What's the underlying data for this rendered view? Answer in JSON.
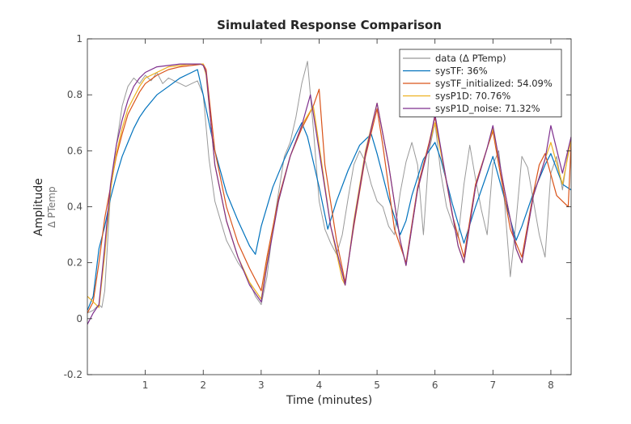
{
  "chart_data": {
    "type": "line",
    "title": "Simulated Response Comparison",
    "xlabel": "Time (minutes)",
    "ylabel": "Amplitude",
    "ylabel_sub": "Δ PTemp",
    "xlim": [
      0,
      8.35
    ],
    "ylim": [
      -0.2,
      1.0
    ],
    "xticks": [
      1,
      2,
      3,
      4,
      5,
      6,
      7,
      8
    ],
    "yticks": [
      -0.2,
      0,
      0.2,
      0.4,
      0.6,
      0.8,
      1
    ],
    "ytick_labels": [
      "-0.2",
      "0",
      "0.2",
      "0.4",
      "0.6",
      "0.8",
      "1"
    ],
    "grid": false,
    "legend_position": "top-right",
    "colors": {
      "data": "#999999",
      "sysTF": "#0072BD",
      "sysTF_initialized": "#D95319",
      "sysP1D": "#EDB120",
      "sysP1D_noise": "#7E2F8E"
    },
    "series": [
      {
        "name": "data (Δ PTemp)",
        "key": "data",
        "x": [
          0.0,
          0.1,
          0.2,
          0.25,
          0.3,
          0.4,
          0.5,
          0.6,
          0.7,
          0.8,
          0.9,
          1.0,
          1.1,
          1.2,
          1.3,
          1.4,
          1.5,
          1.6,
          1.7,
          1.8,
          1.9,
          2.0,
          2.1,
          2.2,
          2.3,
          2.4,
          2.5,
          2.6,
          2.7,
          2.8,
          2.9,
          3.0,
          3.1,
          3.2,
          3.3,
          3.4,
          3.5,
          3.6,
          3.7,
          3.8,
          3.9,
          4.0,
          4.1,
          4.2,
          4.3,
          4.4,
          4.5,
          4.6,
          4.7,
          4.8,
          4.9,
          5.0,
          5.1,
          5.2,
          5.3,
          5.4,
          5.5,
          5.6,
          5.7,
          5.8,
          5.9,
          6.0,
          6.1,
          6.2,
          6.3,
          6.4,
          6.5,
          6.6,
          6.7,
          6.8,
          6.9,
          7.0,
          7.1,
          7.2,
          7.3,
          7.4,
          7.5,
          7.6,
          7.7,
          7.8,
          7.9,
          8.0,
          8.1,
          8.2,
          8.3
        ],
        "y": [
          0.02,
          0.03,
          0.05,
          0.04,
          0.1,
          0.45,
          0.62,
          0.76,
          0.83,
          0.86,
          0.84,
          0.87,
          0.85,
          0.88,
          0.84,
          0.86,
          0.85,
          0.84,
          0.83,
          0.84,
          0.85,
          0.8,
          0.57,
          0.42,
          0.35,
          0.28,
          0.24,
          0.2,
          0.17,
          0.13,
          0.08,
          0.05,
          0.15,
          0.32,
          0.45,
          0.58,
          0.63,
          0.72,
          0.84,
          0.92,
          0.68,
          0.42,
          0.32,
          0.27,
          0.23,
          0.3,
          0.43,
          0.55,
          0.6,
          0.56,
          0.48,
          0.42,
          0.4,
          0.33,
          0.3,
          0.45,
          0.56,
          0.63,
          0.55,
          0.3,
          0.6,
          0.7,
          0.52,
          0.4,
          0.34,
          0.29,
          0.48,
          0.62,
          0.5,
          0.39,
          0.3,
          0.55,
          0.6,
          0.42,
          0.15,
          0.35,
          0.58,
          0.54,
          0.42,
          0.3,
          0.22,
          0.52,
          0.58,
          0.46,
          0.6
        ]
      },
      {
        "name": "sysTF:  36%",
        "key": "sysTF",
        "x": [
          0.0,
          0.1,
          0.2,
          0.3,
          0.4,
          0.5,
          0.6,
          0.7,
          0.8,
          0.9,
          1.0,
          1.2,
          1.4,
          1.6,
          1.8,
          1.9,
          2.0,
          2.2,
          2.4,
          2.6,
          2.8,
          2.9,
          3.0,
          3.2,
          3.4,
          3.6,
          3.7,
          3.8,
          4.0,
          4.15,
          4.3,
          4.5,
          4.7,
          4.9,
          5.0,
          5.2,
          5.4,
          5.5,
          5.6,
          5.8,
          6.0,
          6.1,
          6.3,
          6.5,
          6.7,
          6.9,
          7.0,
          7.2,
          7.4,
          7.5,
          7.7,
          7.9,
          8.0,
          8.2,
          8.35
        ],
        "y": [
          0.03,
          0.08,
          0.25,
          0.33,
          0.43,
          0.51,
          0.58,
          0.63,
          0.68,
          0.72,
          0.75,
          0.8,
          0.83,
          0.86,
          0.88,
          0.89,
          0.8,
          0.6,
          0.45,
          0.35,
          0.26,
          0.23,
          0.33,
          0.47,
          0.57,
          0.66,
          0.7,
          0.65,
          0.47,
          0.32,
          0.42,
          0.53,
          0.62,
          0.66,
          0.59,
          0.43,
          0.3,
          0.35,
          0.44,
          0.57,
          0.63,
          0.57,
          0.41,
          0.27,
          0.4,
          0.52,
          0.58,
          0.43,
          0.28,
          0.33,
          0.45,
          0.55,
          0.59,
          0.48,
          0.46
        ]
      },
      {
        "name": "sysTF_initialized: 54.09%",
        "key": "sysTF_initialized",
        "x": [
          0.0,
          0.1,
          0.2,
          0.25,
          0.3,
          0.4,
          0.5,
          0.6,
          0.7,
          0.8,
          0.9,
          1.0,
          1.2,
          1.4,
          1.6,
          1.8,
          2.0,
          2.05,
          2.2,
          2.4,
          2.6,
          2.8,
          3.0,
          3.1,
          3.3,
          3.5,
          3.7,
          3.9,
          4.0,
          4.1,
          4.3,
          4.45,
          4.6,
          4.8,
          5.0,
          5.1,
          5.3,
          5.5,
          5.7,
          5.9,
          6.0,
          6.1,
          6.3,
          6.5,
          6.7,
          6.9,
          7.0,
          7.1,
          7.3,
          7.5,
          7.7,
          7.8,
          7.9,
          8.1,
          8.3,
          8.35
        ],
        "y": [
          0.02,
          0.06,
          0.2,
          0.28,
          0.36,
          0.47,
          0.58,
          0.66,
          0.73,
          0.77,
          0.81,
          0.84,
          0.87,
          0.89,
          0.9,
          0.905,
          0.91,
          0.89,
          0.6,
          0.4,
          0.27,
          0.18,
          0.1,
          0.22,
          0.43,
          0.58,
          0.68,
          0.76,
          0.82,
          0.55,
          0.28,
          0.13,
          0.33,
          0.58,
          0.75,
          0.62,
          0.32,
          0.2,
          0.47,
          0.63,
          0.72,
          0.6,
          0.37,
          0.22,
          0.48,
          0.61,
          0.67,
          0.55,
          0.32,
          0.22,
          0.45,
          0.55,
          0.59,
          0.44,
          0.4,
          0.63
        ]
      },
      {
        "name": "sysP1D: 70.76%",
        "key": "sysP1D",
        "x": [
          0.0,
          0.1,
          0.2,
          0.3,
          0.4,
          0.5,
          0.6,
          0.7,
          0.8,
          0.9,
          1.0,
          1.2,
          1.4,
          1.6,
          1.8,
          2.0,
          2.05,
          2.2,
          2.4,
          2.6,
          2.8,
          3.0,
          3.1,
          3.3,
          3.5,
          3.7,
          3.9,
          4.0,
          4.2,
          4.4,
          4.45,
          4.6,
          4.8,
          5.0,
          5.2,
          5.4,
          5.5,
          5.7,
          5.9,
          6.0,
          6.2,
          6.4,
          6.5,
          6.7,
          6.9,
          7.0,
          7.2,
          7.4,
          7.5,
          7.7,
          7.9,
          8.0,
          8.2,
          8.35
        ],
        "y": [
          0.08,
          0.06,
          0.04,
          0.23,
          0.46,
          0.59,
          0.68,
          0.75,
          0.79,
          0.83,
          0.86,
          0.88,
          0.9,
          0.905,
          0.91,
          0.91,
          0.87,
          0.55,
          0.35,
          0.22,
          0.13,
          0.07,
          0.2,
          0.42,
          0.58,
          0.69,
          0.76,
          0.62,
          0.33,
          0.14,
          0.12,
          0.35,
          0.6,
          0.77,
          0.55,
          0.28,
          0.19,
          0.46,
          0.62,
          0.7,
          0.49,
          0.26,
          0.2,
          0.47,
          0.61,
          0.68,
          0.46,
          0.25,
          0.2,
          0.44,
          0.57,
          0.63,
          0.48,
          0.64
        ]
      },
      {
        "name": "sysP1D_noise: 71.32%",
        "key": "sysP1D_noise",
        "x": [
          0.0,
          0.1,
          0.2,
          0.3,
          0.4,
          0.5,
          0.6,
          0.7,
          0.8,
          0.9,
          1.0,
          1.2,
          1.4,
          1.6,
          1.8,
          1.95,
          2.0,
          2.05,
          2.2,
          2.4,
          2.6,
          2.8,
          3.0,
          3.1,
          3.3,
          3.5,
          3.7,
          3.85,
          4.0,
          4.2,
          4.45,
          4.6,
          4.8,
          5.0,
          5.2,
          5.4,
          5.5,
          5.7,
          5.9,
          6.0,
          6.2,
          6.4,
          6.5,
          6.7,
          6.9,
          7.0,
          7.2,
          7.4,
          7.5,
          7.7,
          7.9,
          8.0,
          8.2,
          8.35
        ],
        "y": [
          -0.02,
          0.02,
          0.05,
          0.26,
          0.48,
          0.62,
          0.71,
          0.78,
          0.83,
          0.86,
          0.88,
          0.9,
          0.905,
          0.91,
          0.91,
          0.91,
          0.905,
          0.88,
          0.55,
          0.35,
          0.22,
          0.12,
          0.06,
          0.19,
          0.42,
          0.58,
          0.69,
          0.8,
          0.6,
          0.33,
          0.12,
          0.34,
          0.59,
          0.77,
          0.55,
          0.28,
          0.19,
          0.46,
          0.62,
          0.73,
          0.49,
          0.26,
          0.2,
          0.47,
          0.61,
          0.69,
          0.46,
          0.25,
          0.2,
          0.44,
          0.57,
          0.69,
          0.52,
          0.65
        ]
      }
    ]
  }
}
